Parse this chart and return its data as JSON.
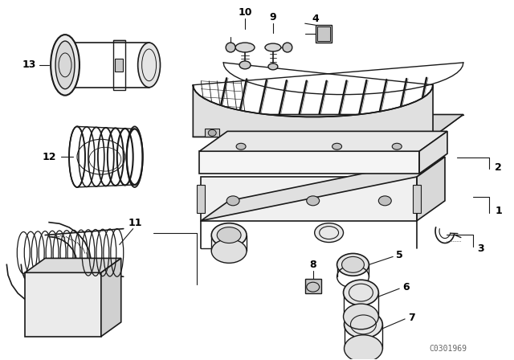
{
  "bg_color": "#ffffff",
  "line_color": "#1a1a1a",
  "label_color": "#000000",
  "watermark": "C0301969",
  "fig_w": 6.4,
  "fig_h": 4.48,
  "dpi": 100,
  "label_fontsize": 9,
  "watermark_fontsize": 7
}
